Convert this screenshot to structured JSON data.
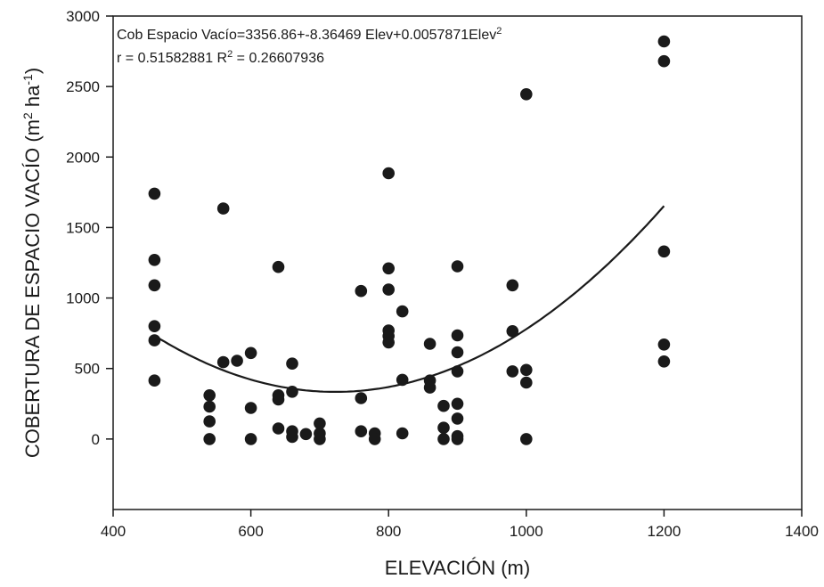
{
  "chart_data": {
    "type": "scatter",
    "title": "",
    "xlabel": "ELEVACIÓN (m)",
    "ylabel": {
      "main": "COBERTURA DE ESPACIO VACÍO (m",
      "sup1": "2",
      "mid": " ha",
      "sup2": "-1",
      "end": ")"
    },
    "xlim": [
      400,
      1400
    ],
    "ylim": [
      -500,
      3000
    ],
    "x_ticks": [
      400,
      600,
      800,
      1000,
      1200,
      1400
    ],
    "y_ticks": [
      0,
      500,
      1000,
      1500,
      2000,
      2500,
      3000
    ],
    "grid": false,
    "legend": "none",
    "colors": {
      "points": "#1a1a1a",
      "curve": "#1a1a1a",
      "axes": "#1a1a1a"
    },
    "annotations": {
      "equation": {
        "prefix": "Cob Espacio Vacío=3356.86+-8.36469 Elev+0.0057871Elev",
        "sup": "2"
      },
      "stats": {
        "part1": "r = 0.51582881 R",
        "sup": "2",
        "part2": " = 0.26607936"
      }
    },
    "fit": {
      "type": "quadratic",
      "a": 3356.86,
      "b": -8.36469,
      "c": 0.0057871,
      "x_range": [
        460,
        1200
      ]
    },
    "points": [
      {
        "x": 460,
        "y": 1740
      },
      {
        "x": 460,
        "y": 1270
      },
      {
        "x": 460,
        "y": 1090
      },
      {
        "x": 460,
        "y": 800
      },
      {
        "x": 460,
        "y": 700
      },
      {
        "x": 460,
        "y": 415
      },
      {
        "x": 540,
        "y": 310
      },
      {
        "x": 540,
        "y": 230
      },
      {
        "x": 540,
        "y": 125
      },
      {
        "x": 540,
        "y": 0
      },
      {
        "x": 560,
        "y": 1635
      },
      {
        "x": 560,
        "y": 545
      },
      {
        "x": 580,
        "y": 555
      },
      {
        "x": 600,
        "y": 610
      },
      {
        "x": 600,
        "y": 220
      },
      {
        "x": 600,
        "y": 0
      },
      {
        "x": 640,
        "y": 1220
      },
      {
        "x": 640,
        "y": 310
      },
      {
        "x": 640,
        "y": 280
      },
      {
        "x": 640,
        "y": 75
      },
      {
        "x": 660,
        "y": 535
      },
      {
        "x": 660,
        "y": 335
      },
      {
        "x": 660,
        "y": 55
      },
      {
        "x": 660,
        "y": 15
      },
      {
        "x": 680,
        "y": 35
      },
      {
        "x": 700,
        "y": 110
      },
      {
        "x": 700,
        "y": 40
      },
      {
        "x": 700,
        "y": 0
      },
      {
        "x": 760,
        "y": 1050
      },
      {
        "x": 760,
        "y": 290
      },
      {
        "x": 760,
        "y": 55
      },
      {
        "x": 780,
        "y": 40
      },
      {
        "x": 780,
        "y": 0
      },
      {
        "x": 800,
        "y": 1885
      },
      {
        "x": 800,
        "y": 1210
      },
      {
        "x": 800,
        "y": 1060
      },
      {
        "x": 800,
        "y": 770
      },
      {
        "x": 800,
        "y": 730
      },
      {
        "x": 800,
        "y": 685
      },
      {
        "x": 820,
        "y": 905
      },
      {
        "x": 820,
        "y": 420
      },
      {
        "x": 820,
        "y": 40
      },
      {
        "x": 860,
        "y": 675
      },
      {
        "x": 860,
        "y": 415
      },
      {
        "x": 860,
        "y": 365
      },
      {
        "x": 880,
        "y": 235
      },
      {
        "x": 880,
        "y": 80
      },
      {
        "x": 880,
        "y": 0
      },
      {
        "x": 900,
        "y": 1225
      },
      {
        "x": 900,
        "y": 735
      },
      {
        "x": 900,
        "y": 615
      },
      {
        "x": 900,
        "y": 480
      },
      {
        "x": 900,
        "y": 250
      },
      {
        "x": 900,
        "y": 145
      },
      {
        "x": 900,
        "y": 20
      },
      {
        "x": 900,
        "y": 0
      },
      {
        "x": 980,
        "y": 1090
      },
      {
        "x": 980,
        "y": 765
      },
      {
        "x": 980,
        "y": 480
      },
      {
        "x": 1000,
        "y": 2445
      },
      {
        "x": 1000,
        "y": 490
      },
      {
        "x": 1000,
        "y": 400
      },
      {
        "x": 1000,
        "y": 0
      },
      {
        "x": 1200,
        "y": 2820
      },
      {
        "x": 1200,
        "y": 2680
      },
      {
        "x": 1200,
        "y": 1330
      },
      {
        "x": 1200,
        "y": 670
      },
      {
        "x": 1200,
        "y": 550
      }
    ]
  }
}
